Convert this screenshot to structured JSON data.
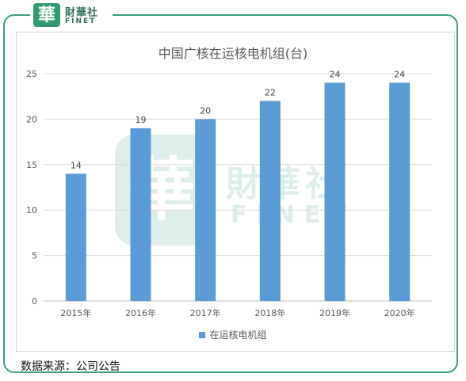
{
  "brand": {
    "seal_char": "華",
    "name_cn": "財華社",
    "name_en": "FINET",
    "color": "#2f9a6f"
  },
  "chart_data": {
    "type": "bar",
    "title": "中国广核在运核电机组(台)",
    "categories": [
      "2015年",
      "2016年",
      "2017年",
      "2018年",
      "2019年",
      "2020年"
    ],
    "series": [
      {
        "name": "在运核电机组",
        "values": [
          14,
          19,
          20,
          22,
          24,
          24
        ],
        "color": "#5b9bd5"
      }
    ],
    "ylim": [
      0,
      25
    ],
    "yticks": [
      0,
      5,
      10,
      15,
      20,
      25
    ],
    "grid": true,
    "legend": "bottom",
    "xlabel": "",
    "ylabel": ""
  },
  "source": "数据来源：公司公告"
}
